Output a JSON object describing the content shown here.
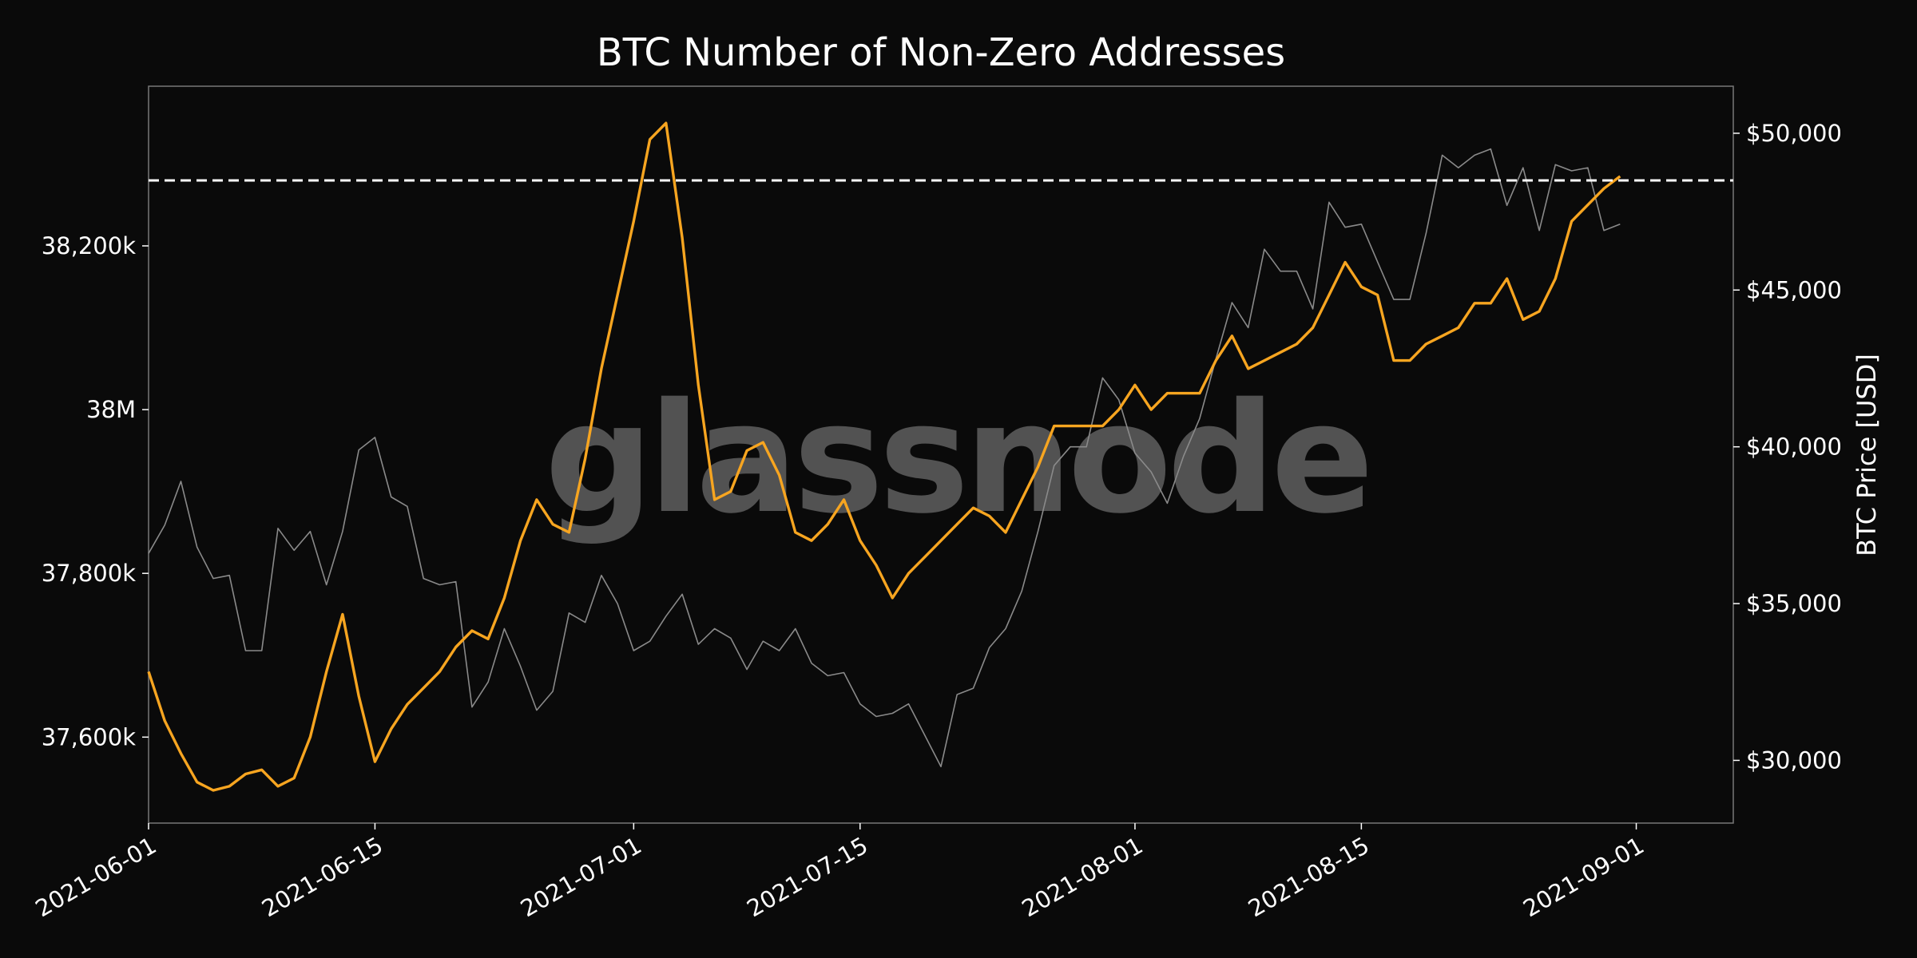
{
  "chart_data": {
    "type": "line",
    "title": "BTC Number of Non-Zero Addresses",
    "watermark": "glassnode",
    "xlabel": "",
    "x_range": [
      "2021-06-01",
      "2021-09-07"
    ],
    "x_ticks": [
      "2021-06-01",
      "2021-06-15",
      "2021-07-01",
      "2021-07-15",
      "2021-08-01",
      "2021-08-15",
      "2021-09-01"
    ],
    "y_left": {
      "label": "",
      "range": [
        37495000,
        38395000
      ],
      "ticks": [
        {
          "value": 37600000,
          "label": "37,600k"
        },
        {
          "value": 37800000,
          "label": "37,800k"
        },
        {
          "value": 38000000,
          "label": "38M"
        },
        {
          "value": 38200000,
          "label": "38,200k"
        }
      ]
    },
    "y_right": {
      "label": "BTC Price [USD]",
      "range": [
        28000,
        51500
      ],
      "ticks": [
        {
          "value": 30000,
          "label": "$30,000"
        },
        {
          "value": 35000,
          "label": "$35,000"
        },
        {
          "value": 40000,
          "label": "$40,000"
        },
        {
          "value": 45000,
          "label": "$45,000"
        },
        {
          "value": 50000,
          "label": "$50,000"
        }
      ]
    },
    "reference_line": {
      "axis": "left",
      "value": 38280000,
      "style": "dashed",
      "color": "#ffffff"
    },
    "grid": false,
    "colors": {
      "addresses": "#f7a520",
      "price": "#8a8a8a",
      "background": "#0a0a0a",
      "frame": "#777777"
    },
    "series": [
      {
        "key": "addresses",
        "axis": "left",
        "x": [
          "2021-06-01",
          "2021-06-02",
          "2021-06-03",
          "2021-06-04",
          "2021-06-05",
          "2021-06-06",
          "2021-06-07",
          "2021-06-08",
          "2021-06-09",
          "2021-06-10",
          "2021-06-11",
          "2021-06-12",
          "2021-06-13",
          "2021-06-14",
          "2021-06-15",
          "2021-06-16",
          "2021-06-17",
          "2021-06-18",
          "2021-06-19",
          "2021-06-20",
          "2021-06-21",
          "2021-06-22",
          "2021-06-23",
          "2021-06-24",
          "2021-06-25",
          "2021-06-26",
          "2021-06-27",
          "2021-06-28",
          "2021-06-29",
          "2021-06-30",
          "2021-07-01",
          "2021-07-02",
          "2021-07-03",
          "2021-07-04",
          "2021-07-05",
          "2021-07-06",
          "2021-07-07",
          "2021-07-08",
          "2021-07-09",
          "2021-07-10",
          "2021-07-11",
          "2021-07-12",
          "2021-07-13",
          "2021-07-14",
          "2021-07-15",
          "2021-07-16",
          "2021-07-17",
          "2021-07-18",
          "2021-07-19",
          "2021-07-20",
          "2021-07-21",
          "2021-07-22",
          "2021-07-23",
          "2021-07-24",
          "2021-07-25",
          "2021-07-26",
          "2021-07-27",
          "2021-07-28",
          "2021-07-29",
          "2021-07-30",
          "2021-07-31",
          "2021-08-01",
          "2021-08-02",
          "2021-08-03",
          "2021-08-04",
          "2021-08-05",
          "2021-08-06",
          "2021-08-07",
          "2021-08-08",
          "2021-08-09",
          "2021-08-10",
          "2021-08-11",
          "2021-08-12",
          "2021-08-13",
          "2021-08-14",
          "2021-08-15",
          "2021-08-16",
          "2021-08-17",
          "2021-08-18",
          "2021-08-19",
          "2021-08-20",
          "2021-08-21",
          "2021-08-22",
          "2021-08-23",
          "2021-08-24",
          "2021-08-25",
          "2021-08-26",
          "2021-08-27",
          "2021-08-28",
          "2021-08-29",
          "2021-08-30",
          "2021-08-31"
        ],
        "values": [
          37680000,
          37620000,
          37580000,
          37545000,
          37535000,
          37540000,
          37555000,
          37560000,
          37540000,
          37550000,
          37600000,
          37680000,
          37750000,
          37650000,
          37570000,
          37610000,
          37640000,
          37660000,
          37680000,
          37710000,
          37730000,
          37720000,
          37770000,
          37840000,
          37890000,
          37860000,
          37850000,
          37940000,
          38050000,
          38140000,
          38230000,
          38330000,
          38350000,
          38210000,
          38030000,
          37890000,
          37900000,
          37950000,
          37960000,
          37920000,
          37850000,
          37840000,
          37860000,
          37890000,
          37840000,
          37810000,
          37770000,
          37800000,
          37820000,
          37840000,
          37860000,
          37880000,
          37870000,
          37850000,
          37890000,
          37930000,
          37980000,
          37980000,
          37980000,
          37980000,
          38000000,
          38030000,
          38000000,
          38020000,
          38020000,
          38020000,
          38060000,
          38090000,
          38050000,
          38060000,
          38070000,
          38080000,
          38100000,
          38140000,
          38180000,
          38150000,
          38140000,
          38060000,
          38060000,
          38080000,
          38090000,
          38100000,
          38130000,
          38130000,
          38160000,
          38110000,
          38120000,
          38160000,
          38230000,
          38250000,
          38270000,
          38285000
        ]
      },
      {
        "key": "price",
        "axis": "right",
        "x": [
          "2021-06-01",
          "2021-06-02",
          "2021-06-03",
          "2021-06-04",
          "2021-06-05",
          "2021-06-06",
          "2021-06-07",
          "2021-06-08",
          "2021-06-09",
          "2021-06-10",
          "2021-06-11",
          "2021-06-12",
          "2021-06-13",
          "2021-06-14",
          "2021-06-15",
          "2021-06-16",
          "2021-06-17",
          "2021-06-18",
          "2021-06-19",
          "2021-06-20",
          "2021-06-21",
          "2021-06-22",
          "2021-06-23",
          "2021-06-24",
          "2021-06-25",
          "2021-06-26",
          "2021-06-27",
          "2021-06-28",
          "2021-06-29",
          "2021-06-30",
          "2021-07-01",
          "2021-07-02",
          "2021-07-03",
          "2021-07-04",
          "2021-07-05",
          "2021-07-06",
          "2021-07-07",
          "2021-07-08",
          "2021-07-09",
          "2021-07-10",
          "2021-07-11",
          "2021-07-12",
          "2021-07-13",
          "2021-07-14",
          "2021-07-15",
          "2021-07-16",
          "2021-07-17",
          "2021-07-18",
          "2021-07-19",
          "2021-07-20",
          "2021-07-21",
          "2021-07-22",
          "2021-07-23",
          "2021-07-24",
          "2021-07-25",
          "2021-07-26",
          "2021-07-27",
          "2021-07-28",
          "2021-07-29",
          "2021-07-30",
          "2021-07-31",
          "2021-08-01",
          "2021-08-02",
          "2021-08-03",
          "2021-08-04",
          "2021-08-05",
          "2021-08-06",
          "2021-08-07",
          "2021-08-08",
          "2021-08-09",
          "2021-08-10",
          "2021-08-11",
          "2021-08-12",
          "2021-08-13",
          "2021-08-14",
          "2021-08-15",
          "2021-08-16",
          "2021-08-17",
          "2021-08-18",
          "2021-08-19",
          "2021-08-20",
          "2021-08-21",
          "2021-08-22",
          "2021-08-23",
          "2021-08-24",
          "2021-08-25",
          "2021-08-26",
          "2021-08-27",
          "2021-08-28",
          "2021-08-29",
          "2021-08-30",
          "2021-08-31"
        ],
        "values": [
          36600,
          37500,
          38900,
          36800,
          35800,
          35900,
          33500,
          33500,
          37400,
          36700,
          37300,
          35600,
          37300,
          39900,
          40300,
          38400,
          38100,
          35800,
          35600,
          35700,
          31700,
          32500,
          34200,
          33000,
          31600,
          32200,
          34700,
          34400,
          35900,
          35000,
          33500,
          33800,
          34600,
          35300,
          33700,
          34200,
          33900,
          32900,
          33800,
          33500,
          34200,
          33100,
          32700,
          32800,
          31800,
          31400,
          31500,
          31800,
          30800,
          29800,
          32100,
          32300,
          33600,
          34200,
          35400,
          37300,
          39400,
          40000,
          40000,
          42200,
          41500,
          39800,
          39200,
          38200,
          39700,
          40900,
          42800,
          44600,
          43800,
          46300,
          45600,
          45600,
          44400,
          47800,
          47000,
          47100,
          45900,
          44700,
          44700,
          46800,
          49300,
          48900,
          49300,
          49500,
          47700,
          48900,
          46900,
          49000,
          48800,
          48900,
          46900,
          47100
        ]
      }
    ]
  }
}
